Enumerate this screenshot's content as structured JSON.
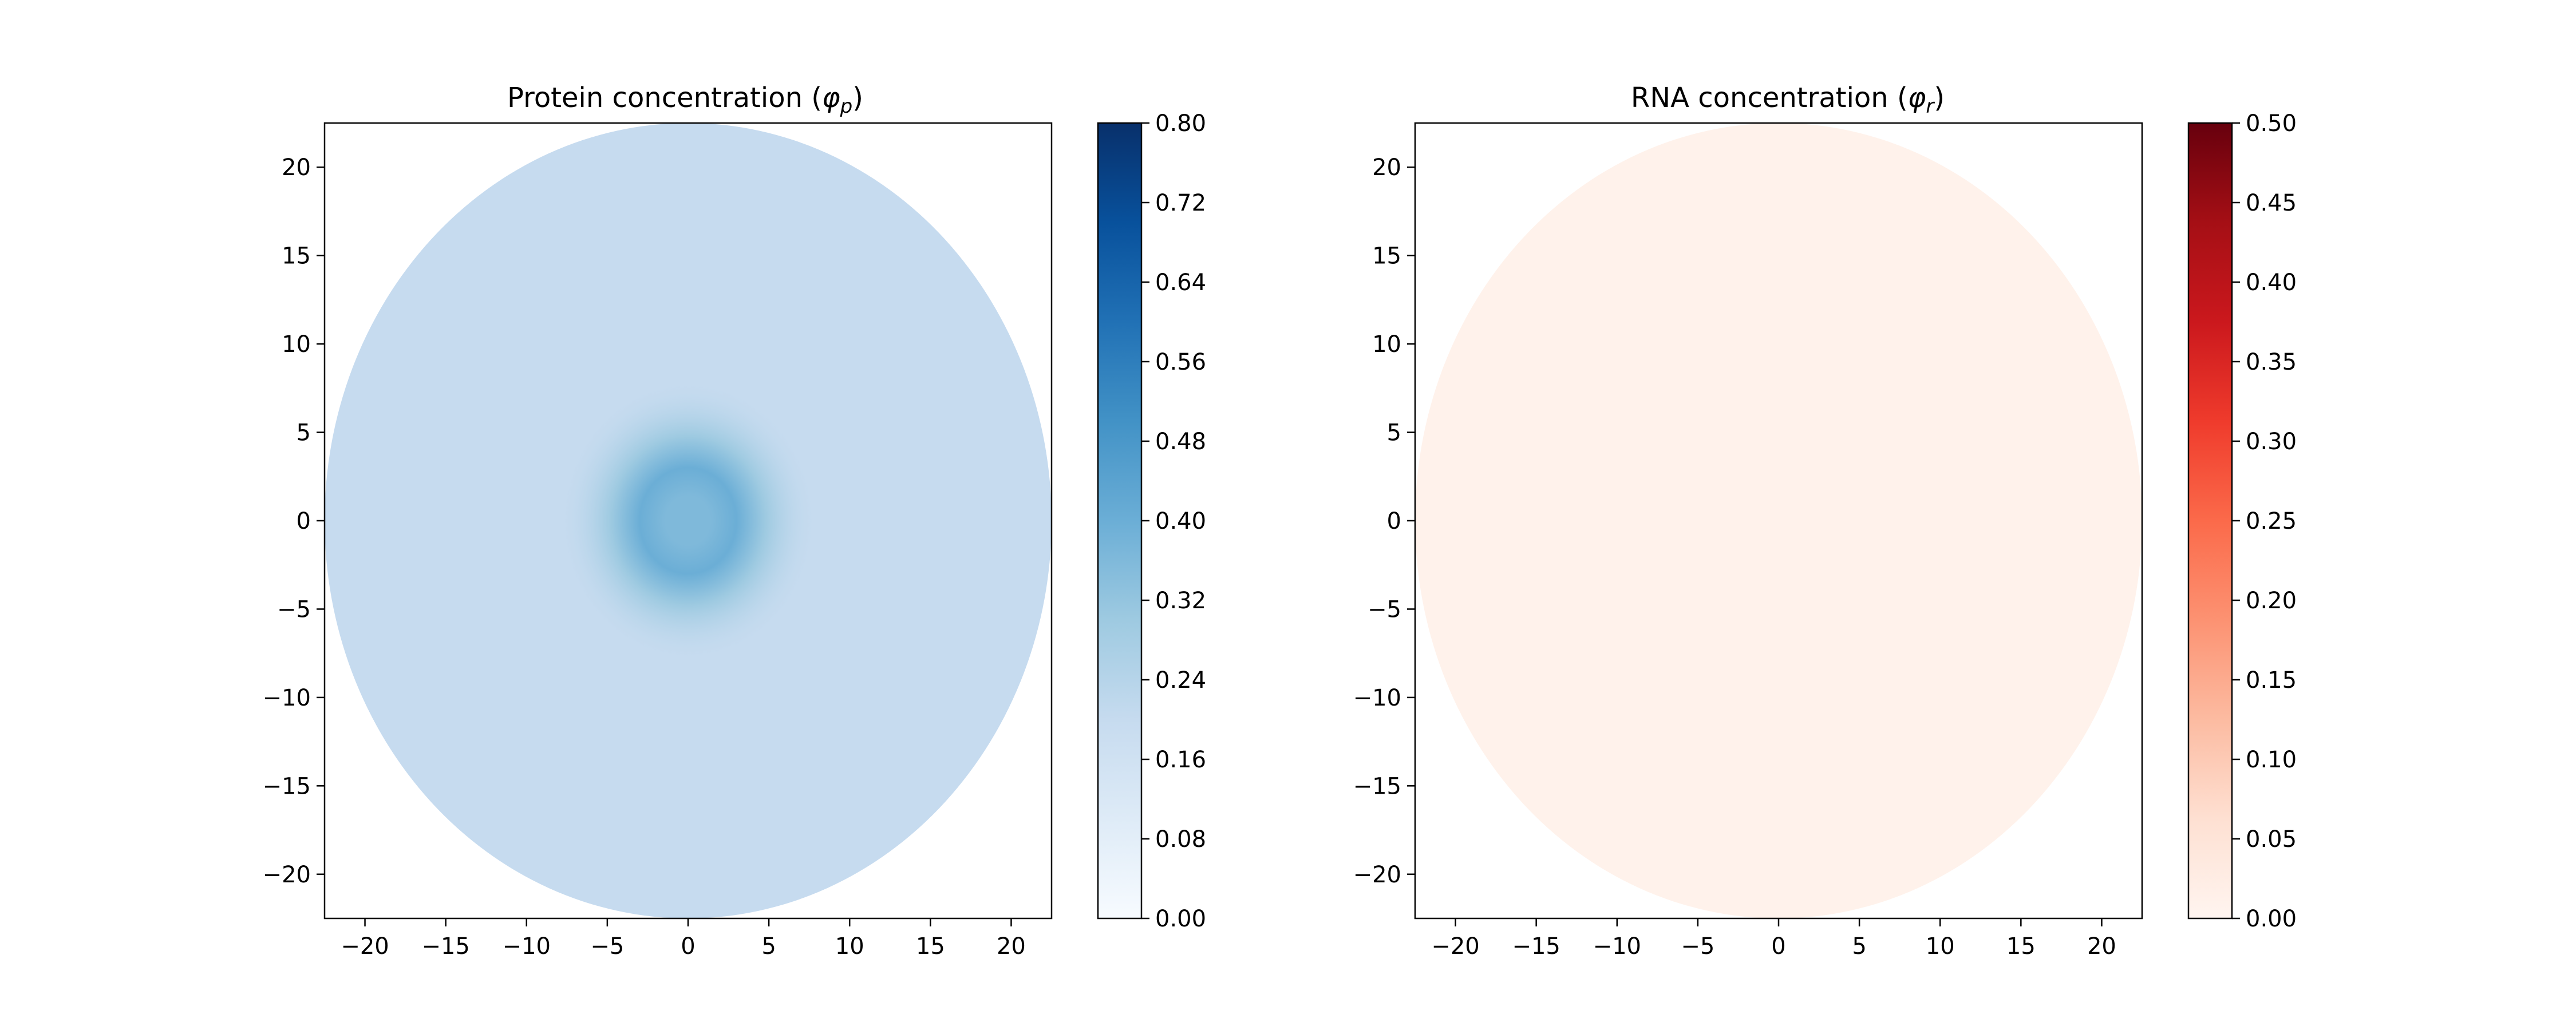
{
  "chart_data": [
    {
      "type": "heatmap",
      "title": "Protein concentration",
      "title_symbol": "φ",
      "title_subscript": "p",
      "xlim": [
        -22.5,
        22.5
      ],
      "ylim": [
        -22.5,
        22.5
      ],
      "xticks": [
        -20,
        -15,
        -10,
        -5,
        0,
        5,
        10,
        15,
        20
      ],
      "yticks": [
        -20,
        -15,
        -10,
        -5,
        0,
        5,
        10,
        15,
        20
      ],
      "xtick_labels": [
        "−20",
        "−15",
        "−10",
        "−5",
        "0",
        "5",
        "10",
        "15",
        "20"
      ],
      "ytick_labels": [
        "−20",
        "−15",
        "−10",
        "−5",
        "0",
        "5",
        "10",
        "15",
        "20"
      ],
      "grid": false,
      "domain_shape": "circle",
      "domain_radius": 22.5,
      "colormap": "Blues",
      "colormap_stops": [
        "#f7fbff",
        "#deebf7",
        "#c6dbef",
        "#9ecae1",
        "#6baed6",
        "#4292c6",
        "#2171b5",
        "#08519c",
        "#08306b"
      ],
      "colorbar_range": [
        0.0,
        0.8
      ],
      "colorbar_ticks": [
        0.0,
        0.08,
        0.16,
        0.24,
        0.32,
        0.4,
        0.48,
        0.56,
        0.64,
        0.72,
        0.8
      ],
      "colorbar_tick_labels": [
        "0.00",
        "0.08",
        "0.16",
        "0.24",
        "0.32",
        "0.40",
        "0.48",
        "0.56",
        "0.64",
        "0.72",
        "0.80"
      ],
      "field": {
        "background_value": 0.2,
        "droplet_center": [
          0,
          0
        ],
        "droplet_radius": 4,
        "droplet_peak_value": 0.4,
        "droplet_core_value": 0.36,
        "interface_width": 2
      }
    },
    {
      "type": "heatmap",
      "title": "RNA concentration",
      "title_symbol": "φ",
      "title_subscript": "r",
      "xlim": [
        -22.5,
        22.5
      ],
      "ylim": [
        -22.5,
        22.5
      ],
      "xticks": [
        -20,
        -15,
        -10,
        -5,
        0,
        5,
        10,
        15,
        20
      ],
      "yticks": [
        -20,
        -15,
        -10,
        -5,
        0,
        5,
        10,
        15,
        20
      ],
      "xtick_labels": [
        "−20",
        "−15",
        "−10",
        "−5",
        "0",
        "5",
        "10",
        "15",
        "20"
      ],
      "ytick_labels": [
        "−20",
        "−15",
        "−10",
        "−5",
        "0",
        "5",
        "10",
        "15",
        "20"
      ],
      "grid": false,
      "domain_shape": "circle",
      "domain_radius": 22.5,
      "colormap": "Reds",
      "colormap_stops": [
        "#fff5f0",
        "#fee0d2",
        "#fcbba1",
        "#fc9272",
        "#fb6a4a",
        "#ef3b2c",
        "#cb181d",
        "#a50f15",
        "#67000d"
      ],
      "colorbar_range": [
        0.0,
        0.5
      ],
      "colorbar_ticks": [
        0.0,
        0.05,
        0.1,
        0.15,
        0.2,
        0.25,
        0.3,
        0.35,
        0.4,
        0.45,
        0.5
      ],
      "colorbar_tick_labels": [
        "0.00",
        "0.05",
        "0.10",
        "0.15",
        "0.20",
        "0.25",
        "0.30",
        "0.35",
        "0.40",
        "0.45",
        "0.50"
      ],
      "field": {
        "background_value": 0.01
      }
    }
  ]
}
